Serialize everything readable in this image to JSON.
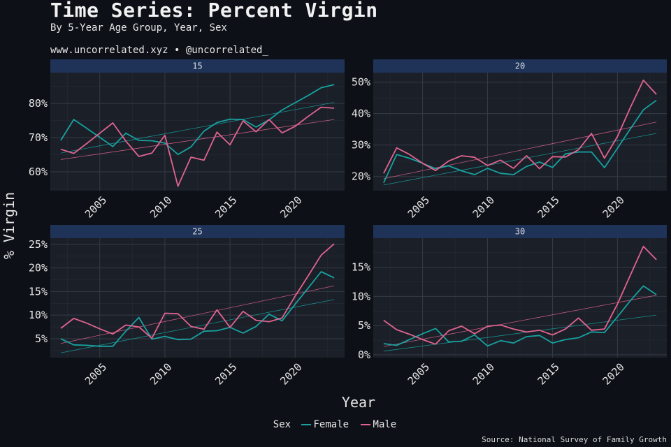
{
  "title": "Time Series: Percent Virgin",
  "subtitle": "By 5-Year Age Group, Year, Sex",
  "credit": "www.uncorrelated.xyz • @uncorrelated_",
  "source": "Source: National Survey of Family Growth",
  "legend": {
    "title": "Sex",
    "items": [
      {
        "label": "Female",
        "color": "#17a2a0"
      },
      {
        "label": "Male",
        "color": "#e0648f"
      }
    ]
  },
  "chart_data": [
    {
      "type": "line",
      "panel": "15",
      "xlabel": "Year",
      "ylabel": "% Virgin",
      "xlim": [
        2001.2,
        2023.8
      ],
      "ylim": [
        54.5,
        89
      ],
      "xticks": [
        2005,
        2010,
        2015,
        2020
      ],
      "xtick_labels": [
        "2005",
        "2010",
        "2015",
        "2020"
      ],
      "yticks": [
        60,
        70,
        80
      ],
      "ytick_labels": [
        "60%",
        "70%",
        "80%"
      ],
      "x": [
        2002,
        2003,
        2004,
        2005,
        2006,
        2007,
        2008,
        2009,
        2010,
        2011,
        2012,
        2013,
        2014,
        2015,
        2016,
        2017,
        2018,
        2019,
        2020,
        2021,
        2022,
        2023
      ],
      "series": [
        {
          "name": "Female",
          "values": [
            69.2,
            75.3,
            72.7,
            70.1,
            67.4,
            71.3,
            69.2,
            69.1,
            68.4,
            65.1,
            67.3,
            71.9,
            74.4,
            75.4,
            75.3,
            73.1,
            75.2,
            78.1,
            80.2,
            82.3,
            84.6,
            85.5
          ]
        },
        {
          "name": "Male",
          "values": [
            66.6,
            65.4,
            68.3,
            71.3,
            74.3,
            69.0,
            64.5,
            65.5,
            70.7,
            55.8,
            64.3,
            63.4,
            71.6,
            67.9,
            74.9,
            71.7,
            75.3,
            71.4,
            73.3,
            76.2,
            78.9,
            78.6
          ]
        }
      ],
      "trend": [
        {
          "name": "Female",
          "x": [
            2002,
            2023
          ],
          "y": [
            65.5,
            80.3
          ]
        },
        {
          "name": "Male",
          "x": [
            2002,
            2023
          ],
          "y": [
            63.6,
            75.3
          ]
        }
      ]
    },
    {
      "type": "line",
      "panel": "20",
      "xlim": [
        2001.2,
        2023.8
      ],
      "ylim": [
        15.5,
        53
      ],
      "xticks": [
        2005,
        2010,
        2015,
        2020
      ],
      "xtick_labels": [
        "2005",
        "2010",
        "2015",
        "2020"
      ],
      "yticks": [
        20,
        30,
        40,
        50
      ],
      "ytick_labels": [
        "20%",
        "30%",
        "40%",
        "50%"
      ],
      "x": [
        2002,
        2003,
        2004,
        2005,
        2006,
        2007,
        2008,
        2009,
        2010,
        2011,
        2012,
        2013,
        2014,
        2015,
        2016,
        2017,
        2018,
        2019,
        2020,
        2021,
        2022,
        2023
      ],
      "series": [
        {
          "name": "Female",
          "values": [
            18.0,
            27.0,
            25.8,
            24.2,
            22.5,
            23.4,
            21.8,
            20.6,
            22.6,
            21.0,
            20.6,
            23.2,
            24.6,
            22.9,
            27.2,
            27.8,
            27.8,
            22.8,
            29.0,
            35.2,
            41.2,
            44.2
          ]
        },
        {
          "name": "Male",
          "values": [
            21.0,
            29.1,
            27.0,
            24.2,
            21.9,
            24.9,
            26.6,
            26.1,
            23.5,
            25.2,
            22.6,
            26.6,
            22.5,
            26.3,
            26.2,
            28.5,
            33.7,
            25.8,
            32.7,
            42.0,
            50.6,
            46.1
          ]
        }
      ],
      "trend": [
        {
          "name": "Female",
          "x": [
            2002,
            2023
          ],
          "y": [
            17.3,
            33.7
          ]
        },
        {
          "name": "Male",
          "x": [
            2002,
            2023
          ],
          "y": [
            19.3,
            37.3
          ]
        }
      ]
    },
    {
      "type": "line",
      "panel": "25",
      "xlim": [
        2001.2,
        2023.8
      ],
      "ylim": [
        1,
        26.3
      ],
      "xticks": [
        2005,
        2010,
        2015,
        2020
      ],
      "xtick_labels": [
        "2005",
        "2010",
        "2015",
        "2020"
      ],
      "yticks": [
        5,
        10,
        15,
        20,
        25
      ],
      "ytick_labels": [
        "5%",
        "10%",
        "15%",
        "20%",
        "25%"
      ],
      "x": [
        2002,
        2003,
        2004,
        2005,
        2006,
        2007,
        2008,
        2009,
        2010,
        2011,
        2012,
        2013,
        2014,
        2015,
        2016,
        2017,
        2018,
        2019,
        2020,
        2021,
        2022,
        2023
      ],
      "series": [
        {
          "name": "Female",
          "values": [
            5.0,
            3.7,
            3.6,
            3.4,
            3.4,
            6.6,
            9.5,
            4.9,
            5.5,
            4.8,
            4.9,
            6.6,
            6.7,
            7.4,
            6.2,
            7.6,
            10.2,
            8.8,
            12.3,
            15.7,
            19.2,
            17.9
          ]
        },
        {
          "name": "Male",
          "values": [
            7.2,
            9.3,
            8.3,
            7.1,
            6.0,
            7.9,
            7.5,
            5.1,
            10.4,
            10.3,
            7.6,
            7.0,
            11.1,
            7.4,
            10.8,
            8.9,
            8.6,
            9.4,
            14.0,
            18.3,
            22.7,
            25.1
          ]
        }
      ],
      "trend": [
        {
          "name": "Female",
          "x": [
            2002,
            2023
          ],
          "y": [
            2.0,
            13.3
          ]
        },
        {
          "name": "Male",
          "x": [
            2002,
            2023
          ],
          "y": [
            4.0,
            16.2
          ]
        }
      ]
    },
    {
      "type": "line",
      "panel": "30",
      "xlim": [
        2001.2,
        2023.8
      ],
      "ylim": [
        -0.5,
        20
      ],
      "xticks": [
        2005,
        2010,
        2015,
        2020
      ],
      "xtick_labels": [
        "2005",
        "2010",
        "2015",
        "2020"
      ],
      "yticks": [
        0,
        5,
        10,
        15
      ],
      "ytick_labels": [
        "0%",
        "5%",
        "10%",
        "15%"
      ],
      "x": [
        2002,
        2003,
        2004,
        2005,
        2006,
        2007,
        2008,
        2009,
        2010,
        2011,
        2012,
        2013,
        2014,
        2015,
        2016,
        2017,
        2018,
        2019,
        2020,
        2021,
        2022,
        2023
      ],
      "series": [
        {
          "name": "Female",
          "values": [
            1.9,
            1.6,
            2.6,
            3.6,
            4.5,
            2.2,
            2.3,
            3.4,
            1.5,
            2.4,
            2.0,
            3.1,
            3.3,
            2.0,
            2.6,
            2.9,
            3.9,
            3.8,
            6.5,
            9.3,
            11.8,
            10.3
          ]
        },
        {
          "name": "Male",
          "values": [
            5.9,
            4.3,
            3.5,
            2.6,
            1.8,
            4.1,
            4.9,
            3.6,
            4.9,
            5.1,
            4.4,
            3.9,
            4.2,
            3.4,
            4.4,
            6.3,
            4.2,
            4.4,
            8.7,
            13.7,
            18.6,
            16.3
          ]
        }
      ],
      "trend": [
        {
          "name": "Female",
          "x": [
            2002,
            2023
          ],
          "y": [
            0.6,
            6.8
          ]
        },
        {
          "name": "Male",
          "x": [
            2002,
            2023
          ],
          "y": [
            1.4,
            10.2
          ]
        }
      ]
    }
  ]
}
